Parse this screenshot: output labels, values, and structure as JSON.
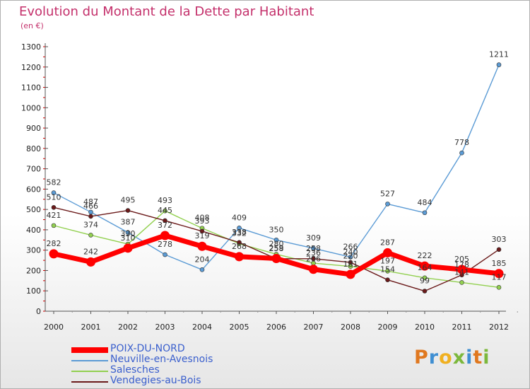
{
  "chart_data": {
    "type": "line",
    "title": "Evolution du Montant de la Dette par Habitant",
    "subtitle": "(en €)",
    "x": [
      "2000",
      "2001",
      "2002",
      "2003",
      "2004",
      "2005",
      "2006",
      "2007",
      "2008",
      "2009",
      "2010",
      "2011",
      "2012"
    ],
    "ylim": [
      0,
      1300
    ],
    "yticks": [
      0,
      100,
      200,
      300,
      400,
      500,
      600,
      700,
      800,
      900,
      1000,
      1100,
      1200,
      1300
    ],
    "grid": false,
    "legend_position": "bottom-left",
    "series": [
      {
        "name": "POIX-DU-NORD",
        "color": "#ff0000",
        "values": [
          282,
          242,
          310,
          372,
          319,
          268,
          259,
          206,
          181,
          287,
          222,
          205,
          185
        ]
      },
      {
        "name": "Neuville-en-Avesnois",
        "color": "#5b9bd5",
        "values": [
          582,
          487,
          387,
          278,
          204,
          409,
          350,
          309,
          266,
          527,
          484,
          778,
          1211
        ]
      },
      {
        "name": "Salesches",
        "color": "#92d050",
        "values": [
          421,
          374,
          330,
          493,
          408,
          332,
          280,
          236,
          220,
          197,
          164,
          141,
          117
        ]
      },
      {
        "name": "Vendegies-au-Bois",
        "color": "#6b1a1a",
        "values": [
          510,
          466,
          495,
          445,
          393,
          338,
          258,
          258,
          240,
          154,
          99,
          178,
          303
        ]
      }
    ]
  },
  "brand": {
    "letters": [
      "P",
      "r",
      "o",
      "x",
      "i",
      "t",
      "i"
    ]
  }
}
